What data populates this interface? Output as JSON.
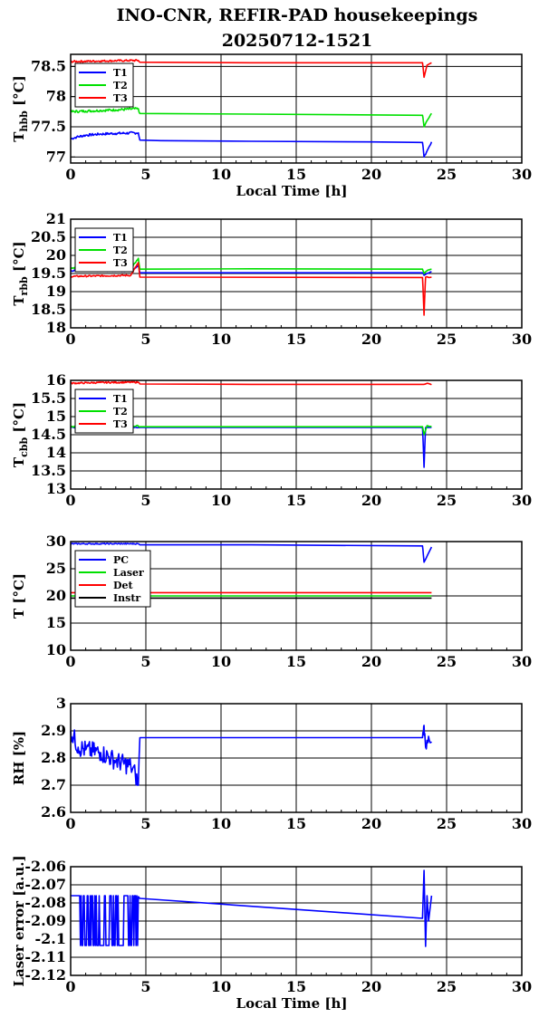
{
  "title_line1": "INO-CNR, REFIR-PAD housekeepings",
  "title_line2": "20250712-1521",
  "colors": {
    "blue": "#0000ff",
    "green": "#00e000",
    "red": "#ff0000",
    "black": "#000000"
  },
  "chart_data": [
    {
      "type": "line",
      "ylabel_main": "T",
      "ylabel_sub": "hbb",
      "ylabel_unit": "[°C]",
      "xlabel": "Local Time [h]",
      "xlim": [
        0,
        30
      ],
      "ylim": [
        76.9,
        78.7
      ],
      "xticks": [
        "0",
        "5",
        "10",
        "15",
        "20",
        "25",
        "30"
      ],
      "yticks": [
        {
          "v": 77,
          "label": "77"
        },
        {
          "v": 77.5,
          "label": "77.5"
        },
        {
          "v": 78,
          "label": "78"
        },
        {
          "v": 78.5,
          "label": "78.5"
        }
      ],
      "grid": true,
      "legend": "top-left",
      "series": [
        {
          "name": "T1",
          "color": "#0000ff",
          "noise": 0.02,
          "points": [
            [
              0,
              77.3
            ],
            [
              0.4,
              77.33
            ],
            [
              1,
              77.36
            ],
            [
              2,
              77.38
            ],
            [
              3,
              77.39
            ],
            [
              4.5,
              77.4
            ],
            [
              4.6,
              77.28
            ],
            [
              6,
              77.27
            ],
            [
              12,
              77.26
            ],
            [
              20,
              77.25
            ],
            [
              23.4,
              77.24
            ],
            [
              23.5,
              77.0
            ],
            [
              23.7,
              77.1
            ],
            [
              24,
              77.25
            ]
          ]
        },
        {
          "name": "T2",
          "color": "#00e000",
          "noise": 0.02,
          "points": [
            [
              0,
              77.75
            ],
            [
              1,
              77.76
            ],
            [
              2,
              77.77
            ],
            [
              3,
              77.78
            ],
            [
              4.5,
              77.8
            ],
            [
              4.6,
              77.72
            ],
            [
              12,
              77.71
            ],
            [
              23.4,
              77.69
            ],
            [
              23.5,
              77.5
            ],
            [
              23.7,
              77.6
            ],
            [
              24,
              77.72
            ]
          ]
        },
        {
          "name": "T3",
          "color": "#ff0000",
          "noise": 0.015,
          "points": [
            [
              0,
              78.58
            ],
            [
              2,
              78.59
            ],
            [
              4.5,
              78.6
            ],
            [
              4.6,
              78.57
            ],
            [
              12,
              78.56
            ],
            [
              23.4,
              78.56
            ],
            [
              23.5,
              78.32
            ],
            [
              23.7,
              78.52
            ],
            [
              24,
              78.56
            ]
          ]
        }
      ]
    },
    {
      "type": "line",
      "ylabel_main": "T",
      "ylabel_sub": "rbb",
      "ylabel_unit": "[°C]",
      "xlabel": "",
      "xlim": [
        0,
        30
      ],
      "ylim": [
        18,
        21
      ],
      "xticks": [
        "0",
        "5",
        "10",
        "15",
        "20",
        "25",
        "30"
      ],
      "yticks": [
        {
          "v": 18,
          "label": "18"
        },
        {
          "v": 18.5,
          "label": "18.5"
        },
        {
          "v": 19,
          "label": "19"
        },
        {
          "v": 19.5,
          "label": "19.5"
        },
        {
          "v": 20,
          "label": "20"
        },
        {
          "v": 20.5,
          "label": "20.5"
        },
        {
          "v": 21,
          "label": "21"
        }
      ],
      "grid": true,
      "legend": "top-left",
      "series": [
        {
          "name": "T1",
          "color": "#0000ff",
          "noise": 0.02,
          "points": [
            [
              0,
              19.58
            ],
            [
              4,
              19.57
            ],
            [
              4.5,
              19.72
            ],
            [
              4.6,
              19.52
            ],
            [
              23.4,
              19.52
            ],
            [
              23.5,
              19.45
            ],
            [
              23.7,
              19.5
            ],
            [
              24,
              19.55
            ]
          ]
        },
        {
          "name": "T2",
          "color": "#00e000",
          "noise": 0.02,
          "points": [
            [
              0,
              19.65
            ],
            [
              4,
              19.64
            ],
            [
              4.5,
              19.92
            ],
            [
              4.6,
              19.62
            ],
            [
              12,
              19.63
            ],
            [
              23.4,
              19.62
            ],
            [
              23.5,
              19.5
            ],
            [
              23.7,
              19.58
            ],
            [
              24,
              19.62
            ]
          ]
        },
        {
          "name": "T3",
          "color": "#ff0000",
          "noise": 0.02,
          "points": [
            [
              0,
              19.42
            ],
            [
              4,
              19.45
            ],
            [
              4.5,
              19.8
            ],
            [
              4.6,
              19.4
            ],
            [
              23.4,
              19.39
            ],
            [
              23.5,
              18.35
            ],
            [
              23.6,
              19.4
            ],
            [
              24,
              19.4
            ]
          ]
        }
      ]
    },
    {
      "type": "line",
      "ylabel_main": "T",
      "ylabel_sub": "cbb",
      "ylabel_unit": "[°C]",
      "xlabel": "",
      "xlim": [
        0,
        30
      ],
      "ylim": [
        13,
        16
      ],
      "xticks": [
        "0",
        "5",
        "10",
        "15",
        "20",
        "25",
        "30"
      ],
      "yticks": [
        {
          "v": 13,
          "label": "13"
        },
        {
          "v": 13.5,
          "label": "13.5"
        },
        {
          "v": 14,
          "label": "14"
        },
        {
          "v": 14.5,
          "label": "14.5"
        },
        {
          "v": 15,
          "label": "15"
        },
        {
          "v": 15.5,
          "label": "15.5"
        },
        {
          "v": 16,
          "label": "16"
        }
      ],
      "grid": true,
      "legend": "top-left",
      "series": [
        {
          "name": "T1",
          "color": "#0000ff",
          "noise": 0.01,
          "points": [
            [
              0,
              14.7
            ],
            [
              4.5,
              14.7
            ],
            [
              4.6,
              14.7
            ],
            [
              12,
              14.7
            ],
            [
              23.4,
              14.7
            ],
            [
              23.5,
              13.6
            ],
            [
              23.6,
              14.7
            ],
            [
              24,
              14.7
            ]
          ]
        },
        {
          "name": "T2",
          "color": "#00e000",
          "noise": 0.02,
          "points": [
            [
              0,
              14.72
            ],
            [
              4.5,
              14.74
            ],
            [
              4.6,
              14.72
            ],
            [
              12,
              14.72
            ],
            [
              23.4,
              14.72
            ],
            [
              23.5,
              14.5
            ],
            [
              23.7,
              14.75
            ],
            [
              24,
              14.72
            ]
          ]
        },
        {
          "name": "T3",
          "color": "#ff0000",
          "noise": 0.02,
          "points": [
            [
              0,
              15.92
            ],
            [
              2,
              15.94
            ],
            [
              4.5,
              15.95
            ],
            [
              4.6,
              15.9
            ],
            [
              12,
              15.89
            ],
            [
              23.4,
              15.89
            ],
            [
              23.7,
              15.92
            ],
            [
              24,
              15.88
            ]
          ]
        }
      ]
    },
    {
      "type": "line",
      "ylabel_main": "T [°C]",
      "ylabel_sub": "",
      "ylabel_unit": "",
      "xlabel": "",
      "xlim": [
        0,
        30
      ],
      "ylim": [
        10,
        30
      ],
      "xticks": [
        "0",
        "5",
        "10",
        "15",
        "20",
        "25",
        "30"
      ],
      "yticks": [
        {
          "v": 10,
          "label": "10"
        },
        {
          "v": 15,
          "label": "15"
        },
        {
          "v": 20,
          "label": "20"
        },
        {
          "v": 25,
          "label": "25"
        },
        {
          "v": 30,
          "label": "30"
        }
      ],
      "grid": true,
      "legend": "top-left",
      "series": [
        {
          "name": "PC",
          "color": "#0000ff",
          "noise": 0.1,
          "points": [
            [
              0,
              29.6
            ],
            [
              4.5,
              29.6
            ],
            [
              4.6,
              29.4
            ],
            [
              12,
              29.4
            ],
            [
              23.4,
              29.2
            ],
            [
              23.5,
              26.2
            ],
            [
              24,
              29.0
            ]
          ]
        },
        {
          "name": "Laser",
          "color": "#00e000",
          "noise": 0,
          "points": [
            [
              0,
              20.0
            ],
            [
              24,
              20.0
            ]
          ]
        },
        {
          "name": "Det",
          "color": "#ff0000",
          "noise": 0,
          "points": [
            [
              0,
              20.6
            ],
            [
              24,
              20.6
            ]
          ]
        },
        {
          "name": "Instr",
          "color": "#000000",
          "noise": 0,
          "points": [
            [
              0,
              19.6
            ],
            [
              24,
              19.6
            ]
          ]
        }
      ]
    },
    {
      "type": "line",
      "ylabel_main": "RH [%]",
      "ylabel_sub": "",
      "ylabel_unit": "",
      "xlabel": "",
      "xlim": [
        0,
        30
      ],
      "ylim": [
        2.6,
        3.0
      ],
      "xticks": [
        "0",
        "5",
        "10",
        "15",
        "20",
        "25",
        "30"
      ],
      "yticks": [
        {
          "v": 2.6,
          "label": "2.6"
        },
        {
          "v": 2.7,
          "label": "2.7"
        },
        {
          "v": 2.8,
          "label": "2.8"
        },
        {
          "v": 2.9,
          "label": "2.9"
        },
        {
          "v": 3.0,
          "label": "3"
        }
      ],
      "grid": true,
      "legend": "none",
      "series": [
        {
          "name": "",
          "color": "#0000ff",
          "noise": 0.035,
          "points": [
            [
              0,
              2.9
            ],
            [
              0.5,
              2.84
            ],
            [
              1,
              2.83
            ],
            [
              2,
              2.82
            ],
            [
              3,
              2.79
            ],
            [
              4,
              2.77
            ],
            [
              4.3,
              2.74
            ],
            [
              4.5,
              2.7
            ],
            [
              4.6,
              2.875
            ],
            [
              23.4,
              2.875
            ],
            [
              23.5,
              2.92
            ],
            [
              23.6,
              2.84
            ],
            [
              23.8,
              2.88
            ],
            [
              24,
              2.86
            ]
          ]
        }
      ]
    },
    {
      "type": "line",
      "ylabel_main": "Laser error [a.u.]",
      "ylabel_sub": "",
      "ylabel_unit": "",
      "xlabel": "Local Time [h]",
      "xlim": [
        0,
        30
      ],
      "ylim": [
        -2.12,
        -2.06
      ],
      "xticks": [
        "0",
        "5",
        "10",
        "15",
        "20",
        "25",
        "30"
      ],
      "yticks": [
        {
          "v": -2.12,
          "label": "-2.12"
        },
        {
          "v": -2.11,
          "label": "-2.11"
        },
        {
          "v": -2.1,
          "label": "-2.1"
        },
        {
          "v": -2.09,
          "label": "-2.09"
        },
        {
          "v": -2.08,
          "label": "-2.08"
        },
        {
          "v": -2.07,
          "label": "-2.07"
        },
        {
          "v": -2.06,
          "label": "-2.06"
        }
      ],
      "grid": true,
      "legend": "none",
      "series": [
        {
          "name": "",
          "color": "#0000ff",
          "noise": 0,
          "square": [
            -2.076,
            -2.1035
          ],
          "sq_range": [
            0,
            4.5
          ],
          "points": [
            [
              0,
              -2.076
            ],
            [
              4.5,
              -2.0765
            ],
            [
              4.6,
              -2.0775
            ],
            [
              23.4,
              -2.0885
            ],
            [
              23.5,
              -2.062
            ],
            [
              23.6,
              -2.104
            ],
            [
              23.7,
              -2.076
            ],
            [
              23.8,
              -2.09
            ],
            [
              24,
              -2.076
            ]
          ]
        }
      ]
    }
  ]
}
